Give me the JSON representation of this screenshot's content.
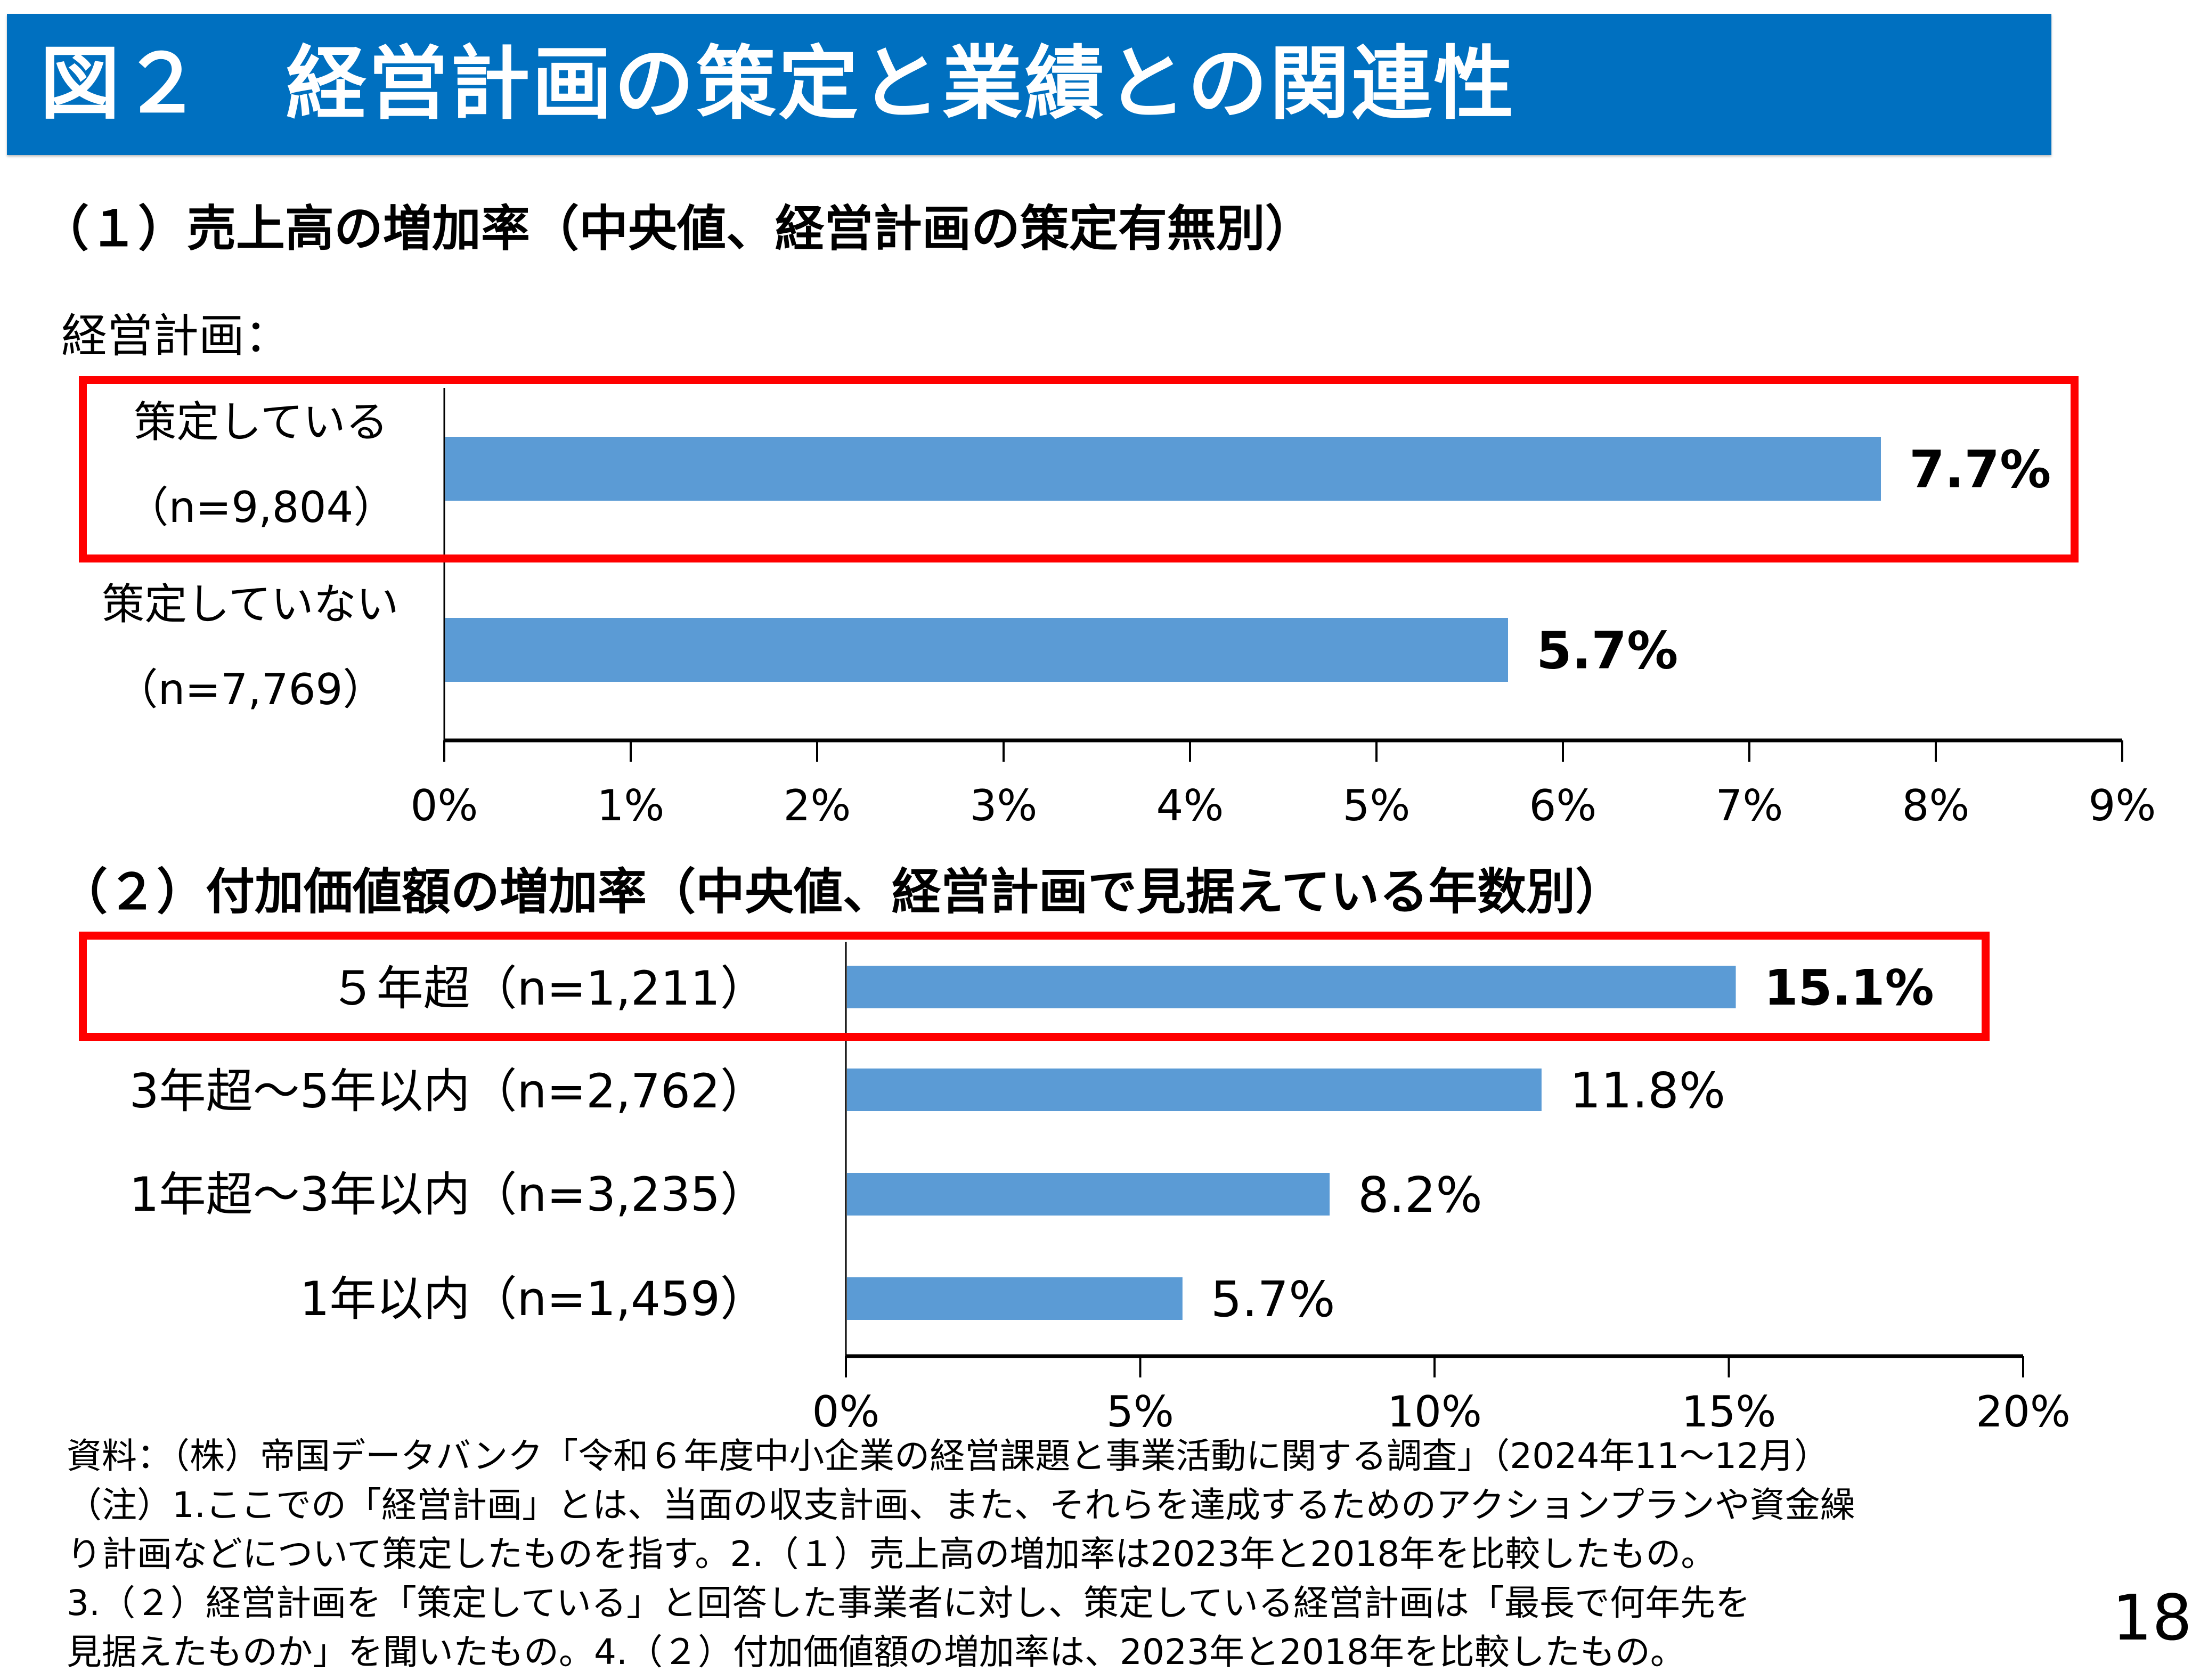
{
  "banner": {
    "title": "図２　経営計画の策定と業績との関連性"
  },
  "plan_label": "経営計画：",
  "chart_data": [
    {
      "type": "bar",
      "orientation": "horizontal",
      "title": "（１）売上高の増加率（中央値、経営計画の策定有無別）",
      "categories": [
        "策定している",
        "策定していない"
      ],
      "category_sublabels": [
        "（n=9,804）",
        "（n=7,769）"
      ],
      "values": [
        7.7,
        5.7
      ],
      "value_labels": [
        "7.7%",
        "5.7%"
      ],
      "xlim": [
        0,
        9
      ],
      "xticks": [
        "0%",
        "1%",
        "2%",
        "3%",
        "4%",
        "5%",
        "6%",
        "7%",
        "8%",
        "9%"
      ],
      "xlabel": "",
      "ylabel": "経営計画：",
      "highlighted_category": "策定している",
      "bar_color": "#5B9BD5",
      "highlight_color": "#FF0000"
    },
    {
      "type": "bar",
      "orientation": "horizontal",
      "title": "（２）付加価値額の増加率（中央値、経営計画で見据えている年数別）",
      "categories": [
        "５年超（n=1,211）",
        "3年超～5年以内（n=2,762）",
        "1年超～3年以内（n=3,235）",
        "1年以内（n=1,459）"
      ],
      "values": [
        15.1,
        11.8,
        8.2,
        5.7
      ],
      "value_labels": [
        "15.1%",
        "11.8%",
        "8.2%",
        "5.7%"
      ],
      "xlim": [
        0,
        20
      ],
      "xticks": [
        "0%",
        "5%",
        "10%",
        "15%",
        "20%"
      ],
      "xlabel": "",
      "ylabel": "",
      "highlighted_category": "５年超（n=1,211）",
      "bar_color": "#5B9BD5",
      "highlight_color": "#FF0000"
    }
  ],
  "footnotes": [
    "資料：（株）帝国データバンク「令和６年度中小企業の経営課題と事業活動に関する調査」（2024年11～12月）",
    "（注）1.ここでの「経営計画」とは、当面の収支計画、また、それらを達成するためのアクションプランや資金繰",
    "り計画などについて策定したものを指す。2.（１）売上高の増加率は2023年と2018年を比較したもの。",
    "3.（２）経営計画を「策定している」と回答した事業者に対し、策定している経営計画は「最長で何年先を",
    "見据えたものか」を聞いたもの。4.（２）付加価値額の増加率は、2023年と2018年を比較したもの。"
  ],
  "page_number": "18"
}
